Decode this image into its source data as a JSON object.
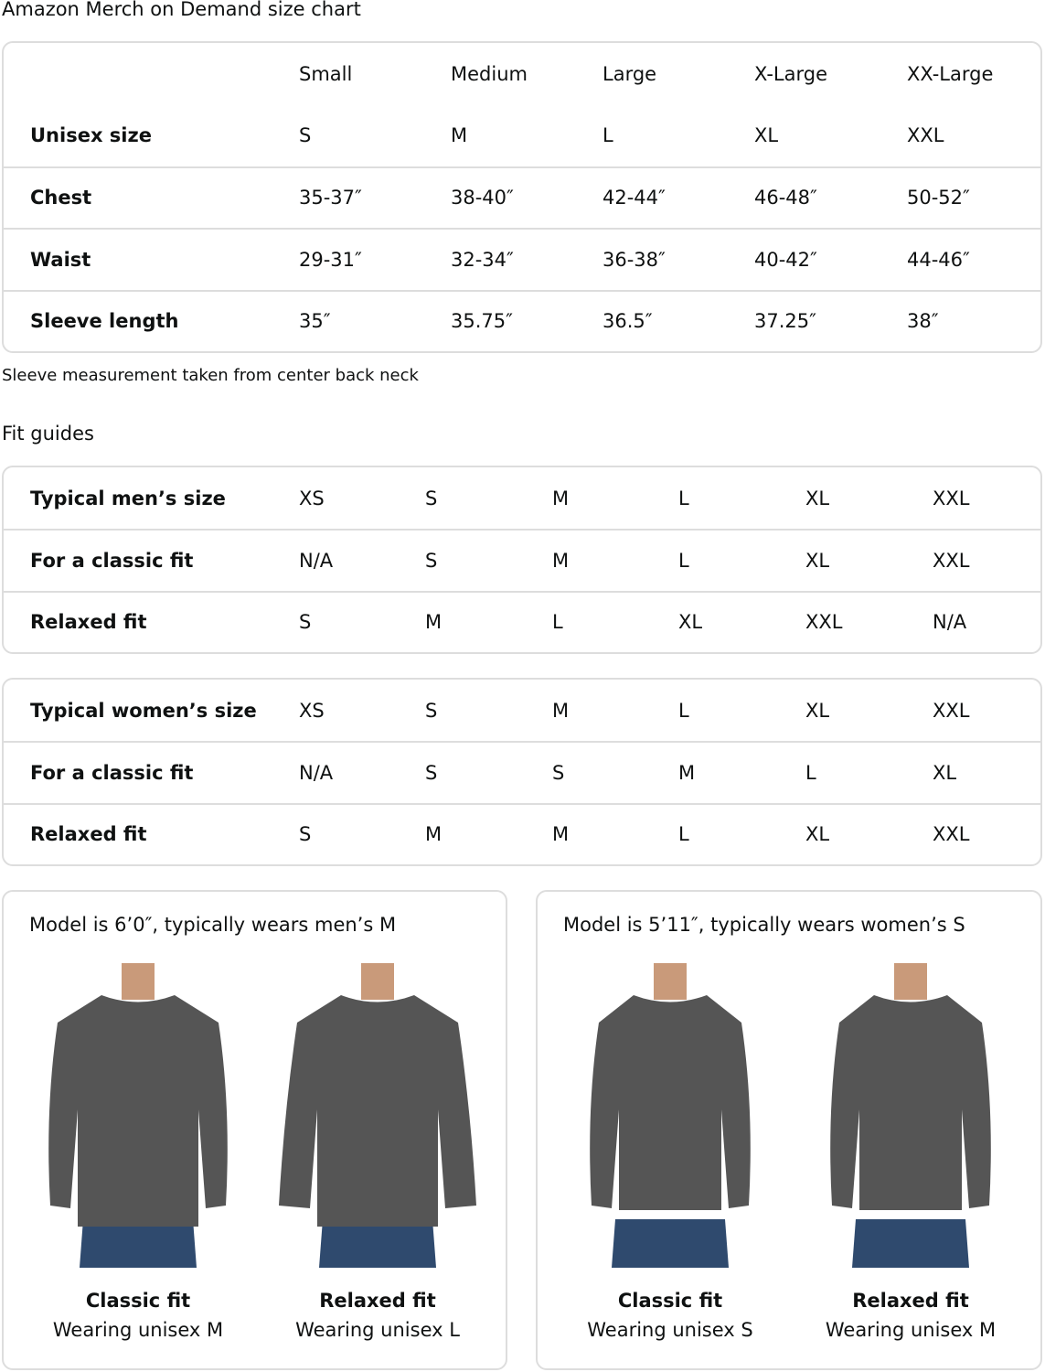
{
  "title": "Amazon Merch on Demand size chart",
  "size_chart": {
    "headers": [
      "",
      "Small",
      "Medium",
      "Large",
      "X-Large",
      "XX-Large"
    ],
    "rows": [
      {
        "label": "Unisex size",
        "values": [
          "S",
          "M",
          "L",
          "XL",
          "XXL"
        ]
      },
      {
        "label": "Chest",
        "values": [
          "35-37″",
          "38-40″",
          "42-44″",
          "46-48″",
          "50-52″"
        ]
      },
      {
        "label": "Waist",
        "values": [
          "29-31″",
          "32-34″",
          "36-38″",
          "40-42″",
          "44-46″"
        ]
      },
      {
        "label": "Sleeve length",
        "values": [
          "35″",
          "35.75″",
          "36.5″",
          "37.25″",
          "38″"
        ]
      }
    ]
  },
  "note": "Sleeve measurement taken from center back neck",
  "fit_guides_title": "Fit guides",
  "mens": [
    {
      "label": "Typical men’s size",
      "values": [
        "XS",
        "S",
        "M",
        "L",
        "XL",
        "XXL"
      ]
    },
    {
      "label": "For a classic fit",
      "values": [
        "N/A",
        "S",
        "M",
        "L",
        "XL",
        "XXL"
      ]
    },
    {
      "label": "Relaxed fit",
      "values": [
        "S",
        "M",
        "L",
        "XL",
        "XXL",
        "N/A"
      ]
    }
  ],
  "womens": [
    {
      "label": "Typical women’s size",
      "values": [
        "XS",
        "S",
        "M",
        "L",
        "XL",
        "XXL"
      ]
    },
    {
      "label": "For a classic fit",
      "values": [
        "N/A",
        "S",
        "S",
        "M",
        "L",
        "XL"
      ]
    },
    {
      "label": "Relaxed fit",
      "values": [
        "S",
        "M",
        "M",
        "L",
        "XL",
        "XXL"
      ]
    }
  ],
  "cards": [
    {
      "heading": "Model is 6’0″, typically wears men’s M",
      "figures": [
        {
          "fit": "Classic fit",
          "wearing": "Wearing unisex M"
        },
        {
          "fit": "Relaxed fit",
          "wearing": "Wearing unisex L"
        }
      ]
    },
    {
      "heading": "Model is 5’11″, typically wears women’s S",
      "figures": [
        {
          "fit": "Classic fit",
          "wearing": "Wearing unisex S"
        },
        {
          "fit": "Relaxed fit",
          "wearing": "Wearing unisex M"
        }
      ]
    }
  ],
  "colors": {
    "border": "#dddddd",
    "sweatshirt": "#555555",
    "jeans": "#2f4a6e",
    "skin": "#c99a7a"
  }
}
